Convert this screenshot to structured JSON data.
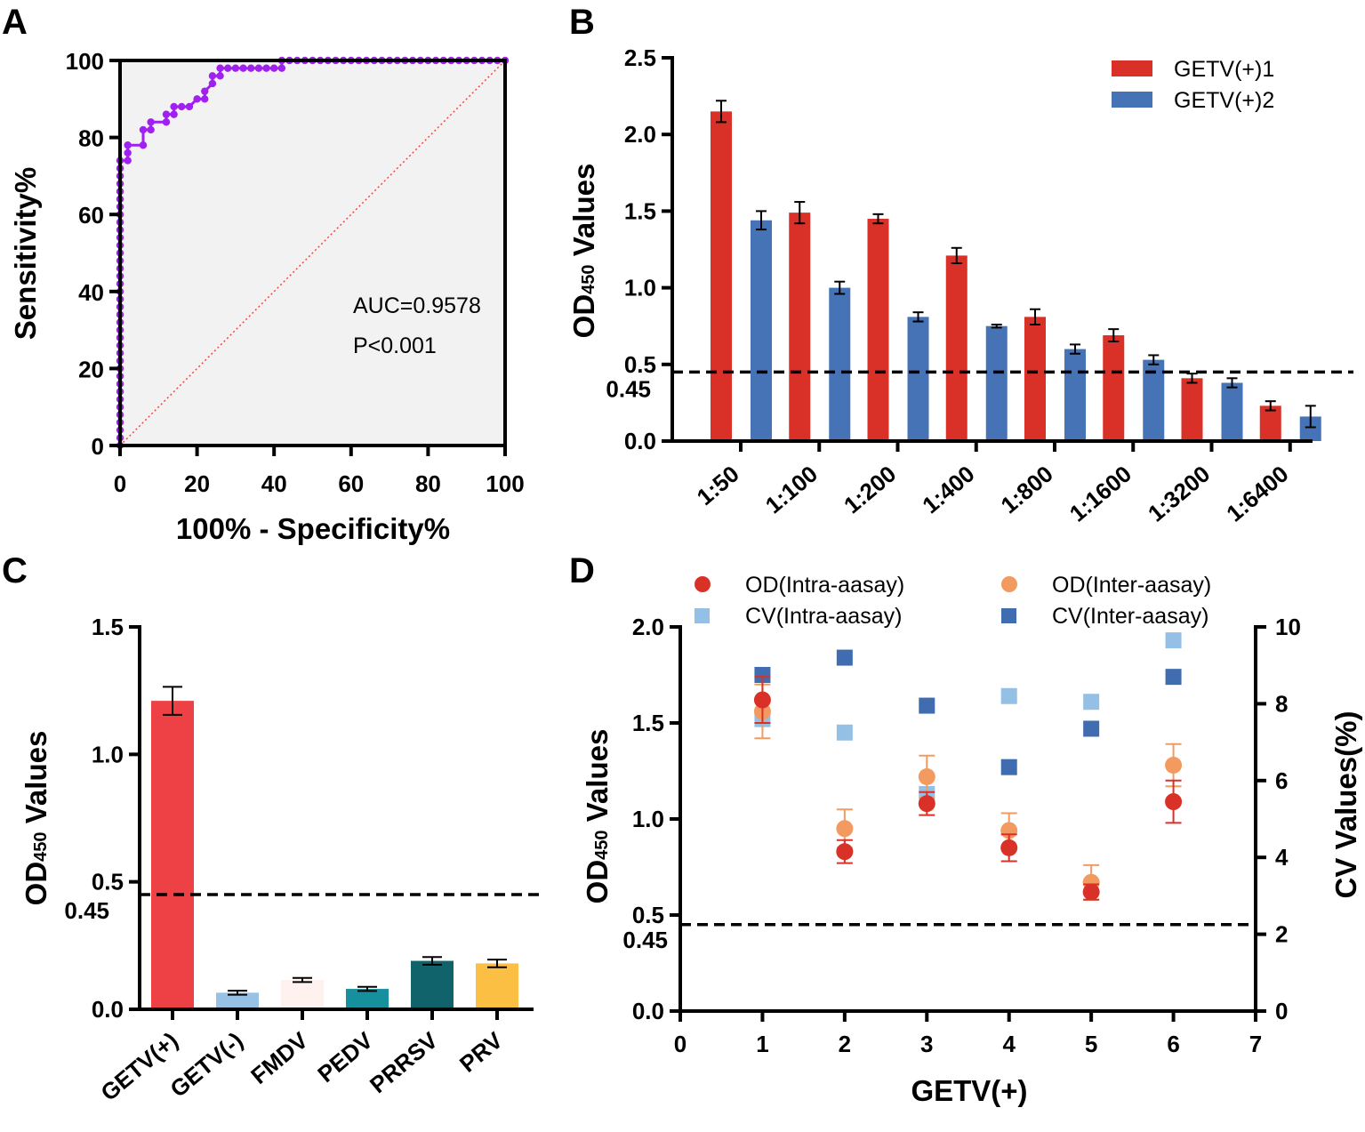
{
  "panels": {
    "A": "A",
    "B": "B",
    "C": "C",
    "D": "D"
  },
  "chart_data": [
    {
      "id": "A",
      "type": "line",
      "title": "",
      "xlabel": "100% - Specificity%",
      "ylabel": "Sensitivity%",
      "xlim": [
        0,
        100
      ],
      "ylim": [
        0,
        100
      ],
      "xticks": [
        "0",
        "20",
        "40",
        "60",
        "80",
        "100"
      ],
      "yticks": [
        "0",
        "20",
        "40",
        "60",
        "80",
        "100"
      ],
      "background": "#f2f2f2",
      "series": [
        {
          "name": "ROC",
          "color": "#a020f0",
          "x": [
            0,
            0,
            0,
            0,
            0,
            0,
            0,
            0,
            0,
            0,
            0,
            0,
            0,
            0,
            0,
            0,
            0,
            0,
            0,
            0,
            0,
            0,
            0,
            0,
            0,
            0,
            0,
            0,
            0,
            0,
            0,
            0,
            0,
            0,
            0,
            0,
            0,
            0,
            0,
            0,
            0,
            0,
            0,
            0,
            0,
            0,
            0,
            0,
            0,
            0,
            0,
            0,
            0,
            0,
            0,
            0,
            0,
            0,
            0,
            0,
            0,
            0,
            0,
            0,
            0,
            0,
            0,
            0,
            0,
            0,
            0,
            0,
            0,
            0,
            0,
            2,
            2,
            2,
            6,
            6,
            8,
            8,
            12,
            12,
            14,
            14,
            16,
            16,
            18,
            20,
            22,
            22,
            24,
            24,
            26,
            26,
            28,
            30,
            32,
            34,
            36,
            38,
            40,
            42,
            42,
            44,
            46,
            48,
            50,
            52,
            54,
            56,
            58,
            60,
            62,
            64,
            66,
            68,
            70,
            72,
            74,
            76,
            78,
            80,
            82,
            84,
            86,
            88,
            90,
            92,
            94,
            96,
            98,
            100
          ],
          "y": [
            0,
            2,
            4,
            6,
            8,
            10,
            12,
            14,
            16,
            18,
            20,
            22,
            24,
            26,
            28,
            30,
            32,
            34,
            36,
            38,
            40,
            42,
            44,
            46,
            48,
            50,
            52,
            54,
            56,
            58,
            60,
            62,
            64,
            66,
            68,
            70,
            72,
            74,
            74,
            74,
            74,
            74,
            74,
            74,
            74,
            74,
            74,
            74,
            74,
            74,
            74,
            74,
            74,
            74,
            74,
            74,
            74,
            74,
            74,
            74,
            74,
            74,
            74,
            74,
            74,
            74,
            74,
            74,
            74,
            74,
            74,
            74,
            74,
            74,
            74,
            74,
            76,
            78,
            78,
            82,
            82,
            84,
            84,
            86,
            86,
            88,
            88,
            88,
            88,
            90,
            90,
            92,
            94,
            96,
            96,
            98,
            98,
            98,
            98,
            98,
            98,
            98,
            98,
            98,
            100,
            100,
            100,
            100,
            100,
            100,
            100,
            100,
            100,
            100,
            100,
            100,
            100,
            100,
            100,
            100,
            100,
            100,
            100,
            100,
            100,
            100,
            100,
            100,
            100,
            100,
            100,
            100,
            100,
            100
          ]
        },
        {
          "name": "reference",
          "color": "#ff4040",
          "style": "dotted",
          "x": [
            0,
            100
          ],
          "y": [
            0,
            100
          ]
        }
      ],
      "annotations": [
        "AUC=0.9578",
        "P<0.001"
      ]
    },
    {
      "id": "B",
      "type": "bar",
      "title": "",
      "xlabel": "",
      "ylabel": "OD450 Values",
      "ylabel_main": "OD",
      "ylabel_sub": "450",
      "ylabel_tail": " Values",
      "ylim": [
        0,
        2.5
      ],
      "yticks": [
        "0.0",
        "0.5",
        "1.0",
        "1.5",
        "2.0",
        "2.5"
      ],
      "categories": [
        "1:50",
        "1:100",
        "1:200",
        "1:400",
        "1:800",
        "1:1600",
        "1:3200",
        "1:6400"
      ],
      "series": [
        {
          "name": "GETV(+)1",
          "color": "#d93127",
          "values": [
            2.15,
            1.49,
            1.45,
            1.21,
            0.81,
            0.69,
            0.41,
            0.23
          ],
          "errors": [
            0.07,
            0.07,
            0.03,
            0.05,
            0.05,
            0.04,
            0.03,
            0.03
          ]
        },
        {
          "name": "GETV(+)2",
          "color": "#4673b5",
          "values": [
            1.44,
            1.0,
            0.81,
            0.75,
            0.6,
            0.53,
            0.38,
            0.16
          ],
          "errors": [
            0.06,
            0.04,
            0.03,
            0.01,
            0.03,
            0.03,
            0.03,
            0.07
          ]
        }
      ],
      "cutoff": 0.45,
      "cutoff_label": "0.45",
      "legend": "top-right"
    },
    {
      "id": "C",
      "type": "bar",
      "title": "",
      "xlabel": "",
      "ylabel": "OD450 Values",
      "ylabel_main": "OD",
      "ylabel_sub": "450",
      "ylabel_tail": " Values",
      "ylim": [
        0,
        1.5
      ],
      "yticks": [
        "0.0",
        "0.5",
        "1.0",
        "1.5"
      ],
      "categories": [
        "GETV(+)",
        "GETV(-)",
        "FMDV",
        "PEDV",
        "PRRSV",
        "PRV"
      ],
      "values": [
        1.21,
        0.065,
        0.115,
        0.08,
        0.19,
        0.18
      ],
      "errors": [
        0.055,
        0.008,
        0.008,
        0.008,
        0.015,
        0.015
      ],
      "colors": [
        "#ee4145",
        "#97c1e5",
        "#fff1ed",
        "#16909c",
        "#10636a",
        "#fbbf44"
      ],
      "cutoff": 0.45,
      "cutoff_label": "0.45"
    },
    {
      "id": "D",
      "type": "scatter",
      "title": "",
      "xlabel": "GETV(+)",
      "ylabel": "OD450 Values",
      "ylabel_main": "OD",
      "ylabel_sub": "450",
      "ylabel_tail": " Values",
      "y2label": "CV Values(%)",
      "xlim": [
        0,
        7
      ],
      "ylim": [
        0,
        2.0
      ],
      "y2lim": [
        0,
        10
      ],
      "xticks": [
        "0",
        "1",
        "2",
        "3",
        "4",
        "5",
        "6",
        "7"
      ],
      "yticks": [
        "0.0",
        "0.5",
        "1.0",
        "1.5",
        "2.0"
      ],
      "y2ticks": [
        "0",
        "2",
        "4",
        "6",
        "8",
        "10"
      ],
      "cutoff": 0.45,
      "cutoff_label": "0.45",
      "legend": "top",
      "series": [
        {
          "name": "OD(Intra-aasay)",
          "axis": "left",
          "marker": "circle",
          "color": "#d93127",
          "x": [
            1,
            2,
            3,
            4,
            5,
            6
          ],
          "y": [
            1.62,
            0.83,
            1.08,
            0.85,
            0.62,
            1.09
          ],
          "errors": [
            0.12,
            0.06,
            0.06,
            0.07,
            0.04,
            0.11
          ]
        },
        {
          "name": "OD(Inter-aasay)",
          "axis": "left",
          "marker": "circle",
          "color": "#f39a61",
          "x": [
            1,
            2,
            3,
            4,
            5,
            6
          ],
          "y": [
            1.56,
            0.95,
            1.22,
            0.94,
            0.67,
            1.28
          ],
          "errors": [
            0.14,
            0.1,
            0.11,
            0.09,
            0.09,
            0.11
          ]
        },
        {
          "name": "CV(Intra-aasay)",
          "axis": "right",
          "marker": "square",
          "color": "#94c0e5",
          "x": [
            1,
            2,
            3,
            4,
            5,
            6
          ],
          "y": [
            7.6,
            7.25,
            5.65,
            8.2,
            8.05,
            9.65
          ]
        },
        {
          "name": "CV(Inter-aasay)",
          "axis": "right",
          "marker": "square",
          "color": "#3f6db0",
          "x": [
            1,
            2,
            3,
            4,
            5,
            6
          ],
          "y": [
            8.75,
            9.2,
            7.95,
            6.35,
            7.35,
            8.7
          ]
        }
      ]
    }
  ]
}
